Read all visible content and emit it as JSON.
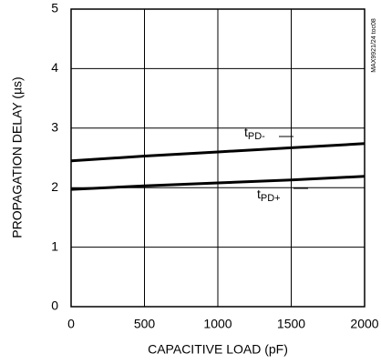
{
  "chart_data": {
    "type": "line",
    "x_label": "CAPACITIVE LOAD (pF)",
    "y_label": "PROPAGATION DELAY (µs)",
    "annotation": "MAX9921/24 toc08",
    "x": [
      0,
      500,
      1000,
      1500,
      2000
    ],
    "series": [
      {
        "name": "tPD-",
        "color": "#000000",
        "values": [
          2.45,
          2.53,
          2.6,
          2.67,
          2.74
        ]
      },
      {
        "name": "tPD+",
        "color": "#000000",
        "values": [
          1.97,
          2.03,
          2.08,
          2.13,
          2.19
        ]
      }
    ],
    "xlim": [
      0,
      2000
    ],
    "xticks": [
      0,
      500,
      1000,
      1500,
      2000
    ],
    "ylim": [
      0,
      5
    ],
    "yticks": [
      0,
      1,
      2,
      3,
      4,
      5
    ],
    "grid": true
  }
}
